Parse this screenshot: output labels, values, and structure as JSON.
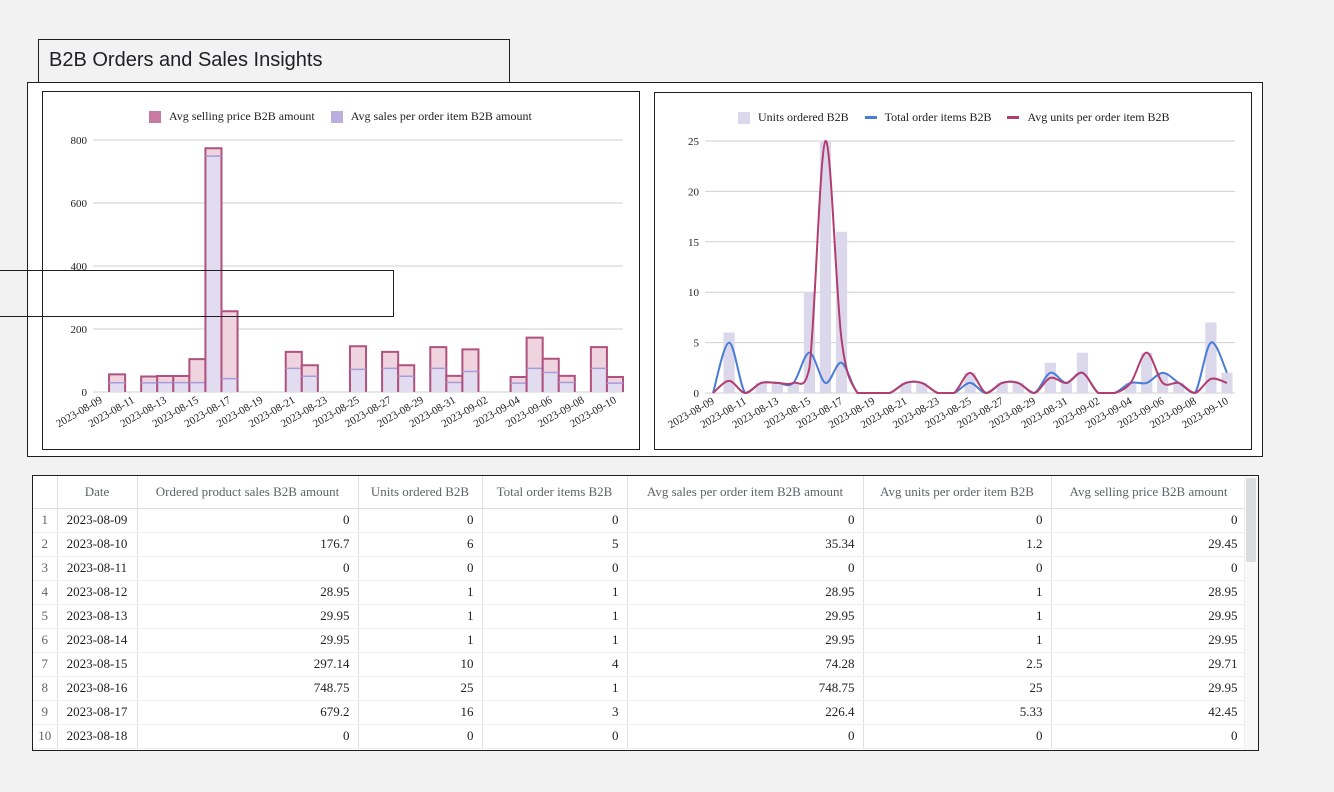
{
  "page": {
    "title": "B2B Orders and Sales Insights"
  },
  "colors": {
    "pink_fill": "#efd3df",
    "pink_line": "#b0527e",
    "lav_fill": "#e1dcef",
    "lav_line": "#a79cd8",
    "bar": "#dcd8ec",
    "blue": "#4a7dd6",
    "magenta": "#b33d6e"
  },
  "charts": {
    "left": {
      "legend": [
        {
          "name": "Avg selling price B2B amount",
          "color": "#c77ba0"
        },
        {
          "name": "Avg sales per order item B2B amount",
          "color": "#b9afdf"
        }
      ]
    },
    "right": {
      "legend": [
        {
          "name": "Units ordered B2B",
          "color": "#dcd8ec"
        },
        {
          "name": "Total order items B2B",
          "color": "#4a7dd6"
        },
        {
          "name": "Avg units per order item B2B",
          "color": "#b33d6e"
        }
      ]
    }
  },
  "chart_data": [
    {
      "type": "area",
      "ylim": [
        0,
        800
      ],
      "yticks": [
        "0",
        "200",
        "400",
        "600",
        "800"
      ],
      "xticks": [
        "2023-08-09",
        "2023-08-11",
        "2023-08-13",
        "2023-08-15",
        "2023-08-17",
        "2023-08-19",
        "2023-08-21",
        "2023-08-23",
        "2023-08-25",
        "2023-08-27",
        "2023-08-29",
        "2023-08-31",
        "2023-09-02",
        "2023-09-04",
        "2023-09-06",
        "2023-09-08",
        "2023-09-10"
      ],
      "x": [
        "2023-08-09",
        "2023-08-10",
        "2023-08-11",
        "2023-08-12",
        "2023-08-13",
        "2023-08-14",
        "2023-08-15",
        "2023-08-16",
        "2023-08-17",
        "2023-08-18",
        "2023-08-19",
        "2023-08-20",
        "2023-08-21",
        "2023-08-22",
        "2023-08-23",
        "2023-08-24",
        "2023-08-25",
        "2023-08-26",
        "2023-08-27",
        "2023-08-28",
        "2023-08-29",
        "2023-08-30",
        "2023-08-31",
        "2023-09-01",
        "2023-09-02",
        "2023-09-03",
        "2023-09-04",
        "2023-09-05",
        "2023-09-06",
        "2023-09-07",
        "2023-09-08",
        "2023-09-09",
        "2023-09-10"
      ],
      "series": [
        {
          "name": "Avg selling price B2B amount",
          "values": [
            0,
            29.45,
            0,
            28.95,
            29.95,
            29.95,
            29.71,
            29.95,
            42.45,
            0,
            0,
            0,
            75,
            50,
            0,
            0,
            72,
            0,
            75,
            50,
            0,
            75,
            30,
            65,
            0,
            0,
            28,
            75,
            62,
            30,
            0,
            75,
            28
          ]
        },
        {
          "name": "Avg sales per order item B2B amount",
          "values": [
            0,
            35.34,
            0,
            28.95,
            29.95,
            29.95,
            74.28,
            748.75,
            226.4,
            0,
            0,
            0,
            75,
            50,
            0,
            0,
            95,
            0,
            75,
            50,
            0,
            90,
            30,
            90,
            0,
            0,
            28,
            120,
            62,
            30,
            0,
            90,
            28
          ]
        }
      ],
      "stacked": true
    },
    {
      "type": "bar",
      "ylim": [
        0,
        25
      ],
      "yticks": [
        "0",
        "5",
        "10",
        "15",
        "20",
        "25"
      ],
      "xticks": [
        "2023-08-09",
        "2023-08-11",
        "2023-08-13",
        "2023-08-15",
        "2023-08-17",
        "2023-08-19",
        "2023-08-21",
        "2023-08-23",
        "2023-08-25",
        "2023-08-27",
        "2023-08-29",
        "2023-08-31",
        "2023-09-02",
        "2023-09-04",
        "2023-09-06",
        "2023-09-08",
        "2023-09-10"
      ],
      "x": [
        "2023-08-09",
        "2023-08-10",
        "2023-08-11",
        "2023-08-12",
        "2023-08-13",
        "2023-08-14",
        "2023-08-15",
        "2023-08-16",
        "2023-08-17",
        "2023-08-18",
        "2023-08-19",
        "2023-08-20",
        "2023-08-21",
        "2023-08-22",
        "2023-08-23",
        "2023-08-24",
        "2023-08-25",
        "2023-08-26",
        "2023-08-27",
        "2023-08-28",
        "2023-08-29",
        "2023-08-30",
        "2023-08-31",
        "2023-09-01",
        "2023-09-02",
        "2023-09-03",
        "2023-09-04",
        "2023-09-05",
        "2023-09-06",
        "2023-09-07",
        "2023-09-08",
        "2023-09-09",
        "2023-09-10"
      ],
      "series": [
        {
          "name": "Units ordered B2B",
          "values": [
            0,
            6,
            0,
            1,
            1,
            1,
            10,
            25,
            16,
            0,
            0,
            0,
            1,
            1,
            0,
            0,
            2,
            0,
            1,
            1,
            0,
            3,
            1,
            4,
            0,
            0,
            1,
            4,
            2,
            1,
            0,
            7,
            2
          ]
        },
        {
          "name": "Total order items B2B",
          "values": [
            0,
            5,
            0,
            1,
            1,
            1,
            4,
            1,
            3,
            0,
            0,
            0,
            1,
            1,
            0,
            0,
            1,
            0,
            1,
            1,
            0,
            2,
            1,
            2,
            0,
            0,
            1,
            1,
            2,
            1,
            0,
            5,
            2
          ]
        },
        {
          "name": "Avg units per order item B2B",
          "values": [
            0,
            1.2,
            0,
            1,
            1,
            1,
            2.5,
            25,
            5.33,
            0,
            0,
            0,
            1,
            1,
            0,
            0,
            2,
            0,
            1,
            1,
            0,
            1.5,
            1,
            2,
            0,
            0,
            1,
            4,
            1,
            1,
            0,
            1.4,
            1
          ]
        }
      ]
    }
  ],
  "table": {
    "headers": [
      "",
      "Date",
      "Ordered product sales B2B amount",
      "Units ordered B2B",
      "Total order items B2B",
      "Avg sales per order item B2B amount",
      "Avg units per order item B2B",
      "Avg selling price B2B amount"
    ],
    "rows": [
      [
        "1",
        "2023-08-09",
        "0",
        "0",
        "0",
        "0",
        "0",
        "0"
      ],
      [
        "2",
        "2023-08-10",
        "176.7",
        "6",
        "5",
        "35.34",
        "1.2",
        "29.45"
      ],
      [
        "3",
        "2023-08-11",
        "0",
        "0",
        "0",
        "0",
        "0",
        "0"
      ],
      [
        "4",
        "2023-08-12",
        "28.95",
        "1",
        "1",
        "28.95",
        "1",
        "28.95"
      ],
      [
        "5",
        "2023-08-13",
        "29.95",
        "1",
        "1",
        "29.95",
        "1",
        "29.95"
      ],
      [
        "6",
        "2023-08-14",
        "29.95",
        "1",
        "1",
        "29.95",
        "1",
        "29.95"
      ],
      [
        "7",
        "2023-08-15",
        "297.14",
        "10",
        "4",
        "74.28",
        "2.5",
        "29.71"
      ],
      [
        "8",
        "2023-08-16",
        "748.75",
        "25",
        "1",
        "748.75",
        "25",
        "29.95"
      ],
      [
        "9",
        "2023-08-17",
        "679.2",
        "16",
        "3",
        "226.4",
        "5.33",
        "42.45"
      ],
      [
        "10",
        "2023-08-18",
        "0",
        "0",
        "0",
        "0",
        "0",
        "0"
      ]
    ]
  }
}
